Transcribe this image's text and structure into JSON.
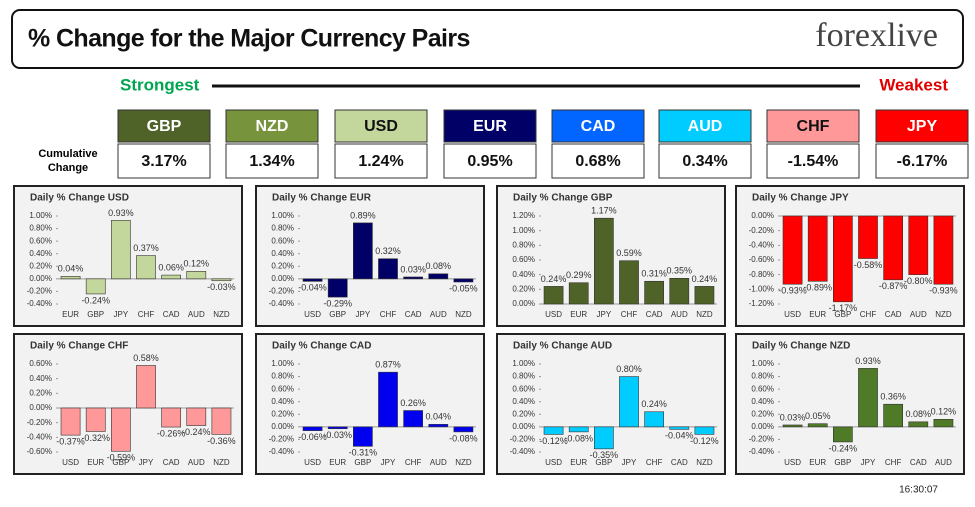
{
  "header": {
    "title": "% Change for the Major Currency Pairs",
    "logo": "forexlive"
  },
  "strongest": "Strongest",
  "weakest": "Weakest",
  "cumulative_label": "Cumulative Change",
  "currencies": [
    {
      "name": "GBP",
      "change": "3.17%",
      "color": "#4f6228"
    },
    {
      "name": "NZD",
      "change": "1.34%",
      "color": "#77933c"
    },
    {
      "name": "USD",
      "change": "1.24%",
      "color": "#c3d69b"
    },
    {
      "name": "EUR",
      "change": "0.95%",
      "color": "#000066"
    },
    {
      "name": "CAD",
      "change": "0.68%",
      "color": "#0066ff"
    },
    {
      "name": "AUD",
      "change": "0.34%",
      "color": "#00ccff"
    },
    {
      "name": "CHF",
      "change": "-1.54%",
      "color": "#ff9999"
    },
    {
      "name": "JPY",
      "change": "-6.17%",
      "color": "#ff0000"
    }
  ],
  "timestamp": "16:30:07",
  "chart_data": [
    {
      "type": "bar",
      "title": "Daily % Change USD",
      "categories": [
        "EUR",
        "GBP",
        "JPY",
        "CHF",
        "CAD",
        "AUD",
        "NZD"
      ],
      "values": [
        0.04,
        -0.24,
        0.93,
        0.37,
        0.06,
        0.12,
        -0.03
      ],
      "value_labels": [
        "0.04%",
        "-0.24%",
        "0.93%",
        "0.37%",
        "0.06%",
        "0.12%",
        "-0.03%"
      ],
      "color": "#c3d69b",
      "ylim": [
        -0.4,
        1.0
      ],
      "yticks": [
        {
          "value": -0.4,
          "label": "-0.40%"
        },
        {
          "value": -0.2,
          "label": "-0.20%"
        },
        {
          "value": 0,
          "label": "0.00%"
        },
        {
          "value": 0.2,
          "label": "0.20%"
        },
        {
          "value": 0.4,
          "label": "0.40%"
        },
        {
          "value": 0.6,
          "label": "0.60%"
        },
        {
          "value": 0.8,
          "label": "0.80%"
        },
        {
          "value": 1.0,
          "label": "1.00%"
        }
      ]
    },
    {
      "type": "bar",
      "title": "Daily % Change EUR",
      "categories": [
        "USD",
        "GBP",
        "JPY",
        "CHF",
        "CAD",
        "AUD",
        "NZD"
      ],
      "values": [
        -0.04,
        -0.29,
        0.89,
        0.32,
        0.03,
        0.08,
        -0.05
      ],
      "value_labels": [
        "-0.04%",
        "-0.29%",
        "0.89%",
        "0.32%",
        "0.03%",
        "0.08%",
        "-0.05%"
      ],
      "color": "#000066",
      "ylim": [
        -0.4,
        1.0
      ],
      "yticks": [
        {
          "value": -0.4,
          "label": "-0.40%"
        },
        {
          "value": -0.2,
          "label": "-0.20%"
        },
        {
          "value": 0,
          "label": "0.00%"
        },
        {
          "value": 0.2,
          "label": "0.20%"
        },
        {
          "value": 0.4,
          "label": "0.40%"
        },
        {
          "value": 0.6,
          "label": "0.60%"
        },
        {
          "value": 0.8,
          "label": "0.80%"
        },
        {
          "value": 1.0,
          "label": "1.00%"
        }
      ]
    },
    {
      "type": "bar",
      "title": "Daily % Change GBP",
      "categories": [
        "USD",
        "EUR",
        "JPY",
        "CHF",
        "CAD",
        "AUD",
        "NZD"
      ],
      "values": [
        0.24,
        0.29,
        1.17,
        0.59,
        0.31,
        0.35,
        0.24
      ],
      "value_labels": [
        "0.24%",
        "0.29%",
        "1.17%",
        "0.59%",
        "0.31%",
        "0.35%",
        "0.24%"
      ],
      "color": "#4f6228",
      "ylim": [
        0,
        1.2
      ],
      "yticks": [
        {
          "value": 0,
          "label": "0.00%"
        },
        {
          "value": 0.2,
          "label": "0.20%"
        },
        {
          "value": 0.4,
          "label": "0.40%"
        },
        {
          "value": 0.6,
          "label": "0.60%"
        },
        {
          "value": 0.8,
          "label": "0.80%"
        },
        {
          "value": 1.0,
          "label": "1.00%"
        },
        {
          "value": 1.2,
          "label": "1.20%"
        }
      ]
    },
    {
      "type": "bar",
      "title": "Daily % Change JPY",
      "categories": [
        "USD",
        "EUR",
        "GBP",
        "CHF",
        "CAD",
        "AUD",
        "NZD"
      ],
      "values": [
        -0.93,
        -0.89,
        -1.17,
        -0.58,
        -0.87,
        -0.8,
        -0.93
      ],
      "value_labels": [
        "-0.93%",
        "-0.89%",
        "-1.17%",
        "-0.58%",
        "-0.87%",
        "-0.80%",
        "-0.93%"
      ],
      "color": "#ff0000",
      "ylim": [
        -1.2,
        0
      ],
      "yticks": [
        {
          "value": -1.2,
          "label": "-1.20%"
        },
        {
          "value": -1.0,
          "label": "-1.00%"
        },
        {
          "value": -0.8,
          "label": "-0.80%"
        },
        {
          "value": -0.6,
          "label": "-0.60%"
        },
        {
          "value": -0.4,
          "label": "-0.40%"
        },
        {
          "value": -0.2,
          "label": "-0.20%"
        },
        {
          "value": 0,
          "label": "0.00%"
        }
      ]
    },
    {
      "type": "bar",
      "title": "Daily % Change CHF",
      "categories": [
        "USD",
        "EUR",
        "GBP",
        "JPY",
        "CAD",
        "AUD",
        "NZD"
      ],
      "values": [
        -0.37,
        -0.32,
        -0.59,
        0.58,
        -0.26,
        -0.24,
        -0.36
      ],
      "value_labels": [
        "-0.37%",
        "-0.32%",
        "-0.59%",
        "0.58%",
        "-0.26%",
        "-0.24%",
        "-0.36%"
      ],
      "color": "#ff9999",
      "ylim": [
        -0.6,
        0.6
      ],
      "yticks": [
        {
          "value": -0.6,
          "label": "-0.60%"
        },
        {
          "value": -0.4,
          "label": "-0.40%"
        },
        {
          "value": -0.2,
          "label": "-0.20%"
        },
        {
          "value": 0,
          "label": "0.00%"
        },
        {
          "value": 0.2,
          "label": "0.20%"
        },
        {
          "value": 0.4,
          "label": "0.40%"
        },
        {
          "value": 0.6,
          "label": "0.60%"
        }
      ]
    },
    {
      "type": "bar",
      "title": "Daily % Change CAD",
      "categories": [
        "USD",
        "EUR",
        "GBP",
        "JPY",
        "CHF",
        "AUD",
        "NZD"
      ],
      "values": [
        -0.06,
        -0.03,
        -0.31,
        0.87,
        0.26,
        0.04,
        -0.08
      ],
      "value_labels": [
        "-0.06%",
        "-0.03%",
        "-0.31%",
        "0.87%",
        "0.26%",
        "0.04%",
        "-0.08%"
      ],
      "color": "#0000ee",
      "ylim": [
        -0.4,
        1.0
      ],
      "yticks": [
        {
          "value": -0.4,
          "label": "-0.40%"
        },
        {
          "value": -0.2,
          "label": "-0.20%"
        },
        {
          "value": 0,
          "label": "0.00%"
        },
        {
          "value": 0.2,
          "label": "0.20%"
        },
        {
          "value": 0.4,
          "label": "0.40%"
        },
        {
          "value": 0.6,
          "label": "0.60%"
        },
        {
          "value": 0.8,
          "label": "0.80%"
        },
        {
          "value": 1.0,
          "label": "1.00%"
        }
      ]
    },
    {
      "type": "bar",
      "title": "Daily % Change AUD",
      "categories": [
        "USD",
        "EUR",
        "GBP",
        "JPY",
        "CHF",
        "CAD",
        "NZD"
      ],
      "values": [
        -0.12,
        -0.08,
        -0.35,
        0.8,
        0.24,
        -0.04,
        -0.12
      ],
      "value_labels": [
        "-0.12%",
        "-0.08%",
        "-0.35%",
        "0.80%",
        "0.24%",
        "-0.04%",
        "-0.12%"
      ],
      "color": "#00ccff",
      "ylim": [
        -0.4,
        1.0
      ],
      "yticks": [
        {
          "value": -0.4,
          "label": "-0.40%"
        },
        {
          "value": -0.2,
          "label": "-0.20%"
        },
        {
          "value": 0,
          "label": "0.00%"
        },
        {
          "value": 0.2,
          "label": "0.20%"
        },
        {
          "value": 0.4,
          "label": "0.40%"
        },
        {
          "value": 0.6,
          "label": "0.60%"
        },
        {
          "value": 0.8,
          "label": "0.80%"
        },
        {
          "value": 1.0,
          "label": "1.00%"
        }
      ]
    },
    {
      "type": "bar",
      "title": "Daily % Change NZD",
      "categories": [
        "USD",
        "EUR",
        "GBP",
        "JPY",
        "CHF",
        "CAD",
        "AUD"
      ],
      "values": [
        0.03,
        0.05,
        -0.24,
        0.93,
        0.36,
        0.08,
        0.12
      ],
      "value_labels": [
        "0.03%",
        "0.05%",
        "-0.24%",
        "0.93%",
        "0.36%",
        "0.08%",
        "0.12%"
      ],
      "color": "#4f7a28",
      "ylim": [
        -0.4,
        1.0
      ],
      "yticks": [
        {
          "value": -0.4,
          "label": "-0.40%"
        },
        {
          "value": -0.2,
          "label": "-0.20%"
        },
        {
          "value": 0,
          "label": "0.00%"
        },
        {
          "value": 0.2,
          "label": "0.20%"
        },
        {
          "value": 0.4,
          "label": "0.40%"
        },
        {
          "value": 0.6,
          "label": "0.60%"
        },
        {
          "value": 0.8,
          "label": "0.80%"
        },
        {
          "value": 1.0,
          "label": "1.00%"
        }
      ]
    }
  ]
}
